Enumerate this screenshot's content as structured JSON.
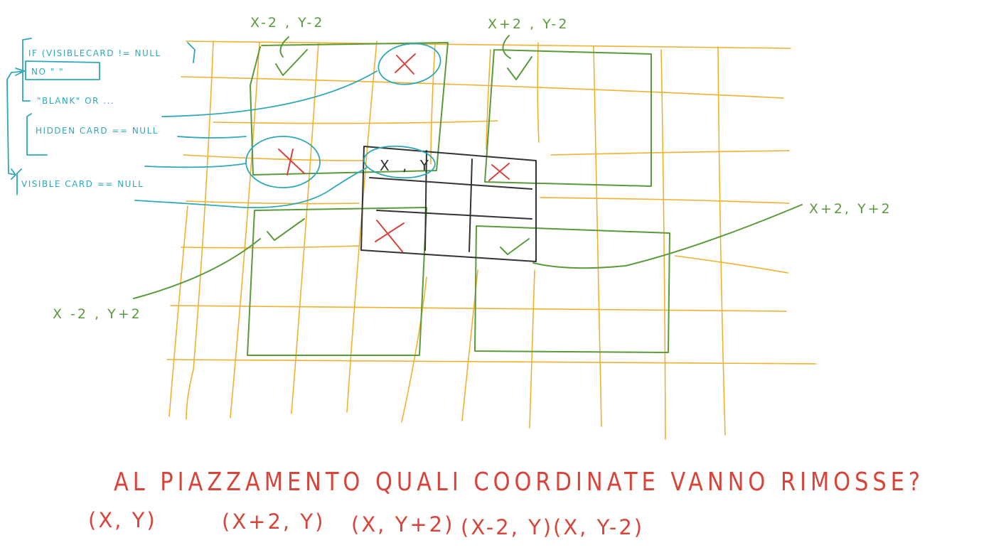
{
  "colors": {
    "grid": "#f0b030",
    "green": "#5a9a3a",
    "blue": "#2fa8b8",
    "black": "#333333",
    "red": "#d6443a"
  },
  "labels": {
    "top_left": "X-2 , Y-2",
    "top_right": "X+2 , Y-2",
    "bottom_left": "X -2 , Y+2",
    "bottom_right": "X+2, Y+2",
    "center": "X , Y"
  },
  "notes": {
    "line1": "IF (VISIBLECARD != NULL",
    "line2": "NO \" \"",
    "line3": "\"BLANK\" OR ...",
    "line4": "HIDDEN CARD == NULL",
    "line5": "VISIBLE CARD == NULL"
  },
  "question": {
    "title": "AL PIAZZAMENTO QUALI COORDINATE VANNO RIMOSSE?",
    "coords": [
      "(X, Y)",
      "(X+2, Y)",
      "(X, Y+2)",
      "(X-2, Y)",
      "(X, Y-2)"
    ]
  },
  "marks": {
    "check_symbol": "check-mark",
    "cross_symbol": "cross-mark"
  }
}
